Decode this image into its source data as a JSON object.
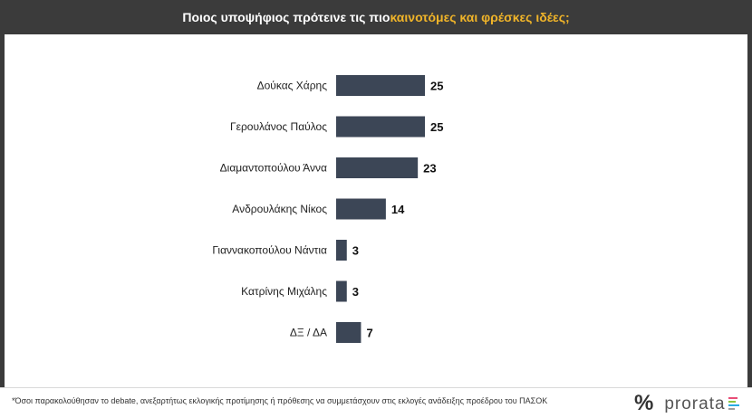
{
  "title": {
    "prefix": "Ποιος υποψήφιος πρότεινε τις πιο ",
    "highlight": "καινοτόμες και φρέσκες ιδέες",
    "suffix": ";"
  },
  "chart_data": {
    "type": "bar",
    "orientation": "horizontal",
    "categories": [
      "Δούκας Χάρης",
      "Γερουλάνος Παύλος",
      "Διαμαντοπούλου Άννα",
      "Ανδρουλάκης Νίκος",
      "Γιαννακοπούλου Νάντια",
      "Κατρίνης Μιχάλης",
      "ΔΞ / ΔΑ"
    ],
    "values": [
      25,
      25,
      23,
      14,
      3,
      3,
      7
    ],
    "value_labels": [
      "25",
      "25",
      "23",
      "14",
      "3",
      "3",
      "7"
    ],
    "bar_color": "#3c4656",
    "xlim": [
      0,
      25
    ],
    "grid": false,
    "legend": "none"
  },
  "footnote": "*Όσοι παρακολούθησαν το debate, ανεξαρτήτως εκλογικής προτίμησης ή πρόθεσης να συμμετάσχουν στις εκλογές ανάδειξης προέδρου του ΠΑΣΟΚ",
  "logo": {
    "symbol": "%",
    "word": "prorata",
    "bar_colors": [
      "#e94e77",
      "#8cc63f",
      "#29abe2",
      "#9e9e9e"
    ]
  }
}
